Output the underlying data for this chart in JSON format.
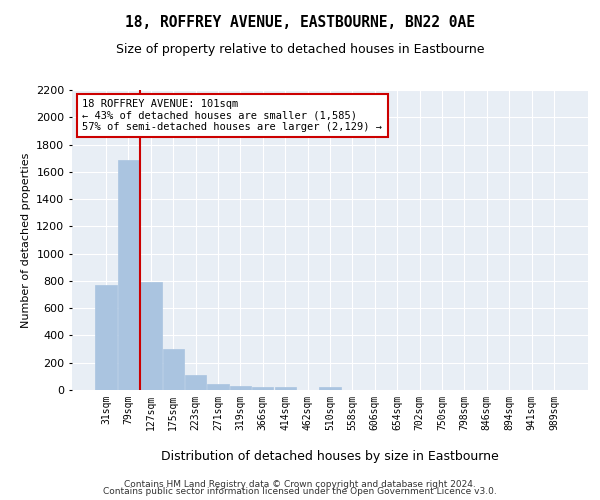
{
  "title": "18, ROFFREY AVENUE, EASTBOURNE, BN22 0AE",
  "subtitle": "Size of property relative to detached houses in Eastbourne",
  "xlabel": "Distribution of detached houses by size in Eastbourne",
  "ylabel": "Number of detached properties",
  "bar_labels": [
    "31sqm",
    "79sqm",
    "127sqm",
    "175sqm",
    "223sqm",
    "271sqm",
    "319sqm",
    "366sqm",
    "414sqm",
    "462sqm",
    "510sqm",
    "558sqm",
    "606sqm",
    "654sqm",
    "702sqm",
    "750sqm",
    "798sqm",
    "846sqm",
    "894sqm",
    "941sqm",
    "989sqm"
  ],
  "bar_values": [
    770,
    1690,
    795,
    300,
    110,
    42,
    30,
    25,
    20,
    0,
    20,
    0,
    0,
    0,
    0,
    0,
    0,
    0,
    0,
    0,
    0
  ],
  "bar_color": "#aac4e0",
  "bar_edgecolor": "#aac4e0",
  "reference_line_x": 1.5,
  "reference_line_color": "#cc0000",
  "annotation_line1": "18 ROFFREY AVENUE: 101sqm",
  "annotation_line2": "← 43% of detached houses are smaller (1,585)",
  "annotation_line3": "57% of semi-detached houses are larger (2,129) →",
  "annotation_box_color": "#cc0000",
  "ylim": [
    0,
    2200
  ],
  "yticks": [
    0,
    200,
    400,
    600,
    800,
    1000,
    1200,
    1400,
    1600,
    1800,
    2000,
    2200
  ],
  "bg_color": "#e8eef5",
  "grid_color": "#ffffff",
  "footer_line1": "Contains HM Land Registry data © Crown copyright and database right 2024.",
  "footer_line2": "Contains public sector information licensed under the Open Government Licence v3.0."
}
